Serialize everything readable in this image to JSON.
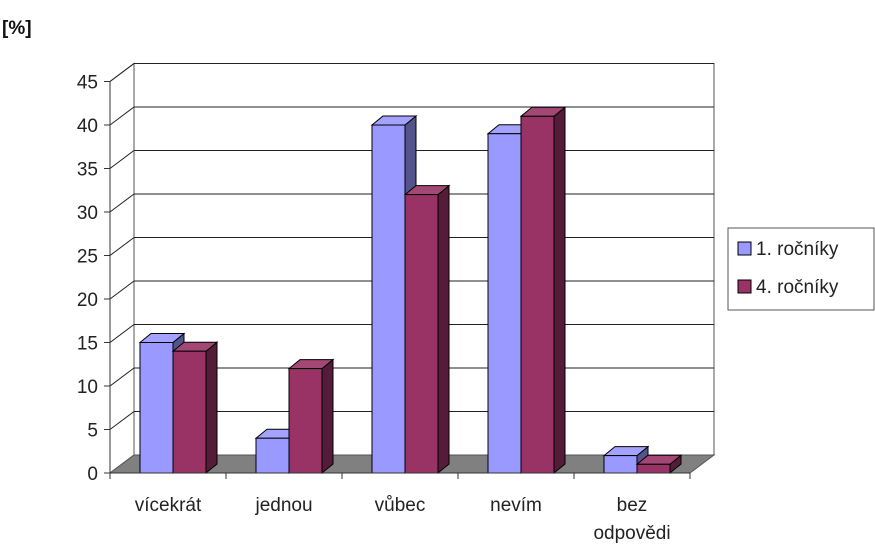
{
  "chart_data": {
    "type": "bar",
    "title": "",
    "ylabel": "[%]",
    "xlabel": "",
    "ylim": [
      0,
      45
    ],
    "yticks": [
      0,
      5,
      10,
      15,
      20,
      25,
      30,
      35,
      40,
      45
    ],
    "categories": [
      "víceкrát",
      "jednou",
      "vůbec",
      "nevím",
      "bez odpovědi"
    ],
    "series": [
      {
        "name": "1. ročníky",
        "values": [
          15,
          4,
          40,
          39,
          2
        ],
        "color": "#9999ff"
      },
      {
        "name": "4. ročníky",
        "values": [
          14,
          12,
          32,
          41,
          1
        ],
        "color": "#993366"
      }
    ],
    "grid": true,
    "legend": "right",
    "style": "3d"
  }
}
